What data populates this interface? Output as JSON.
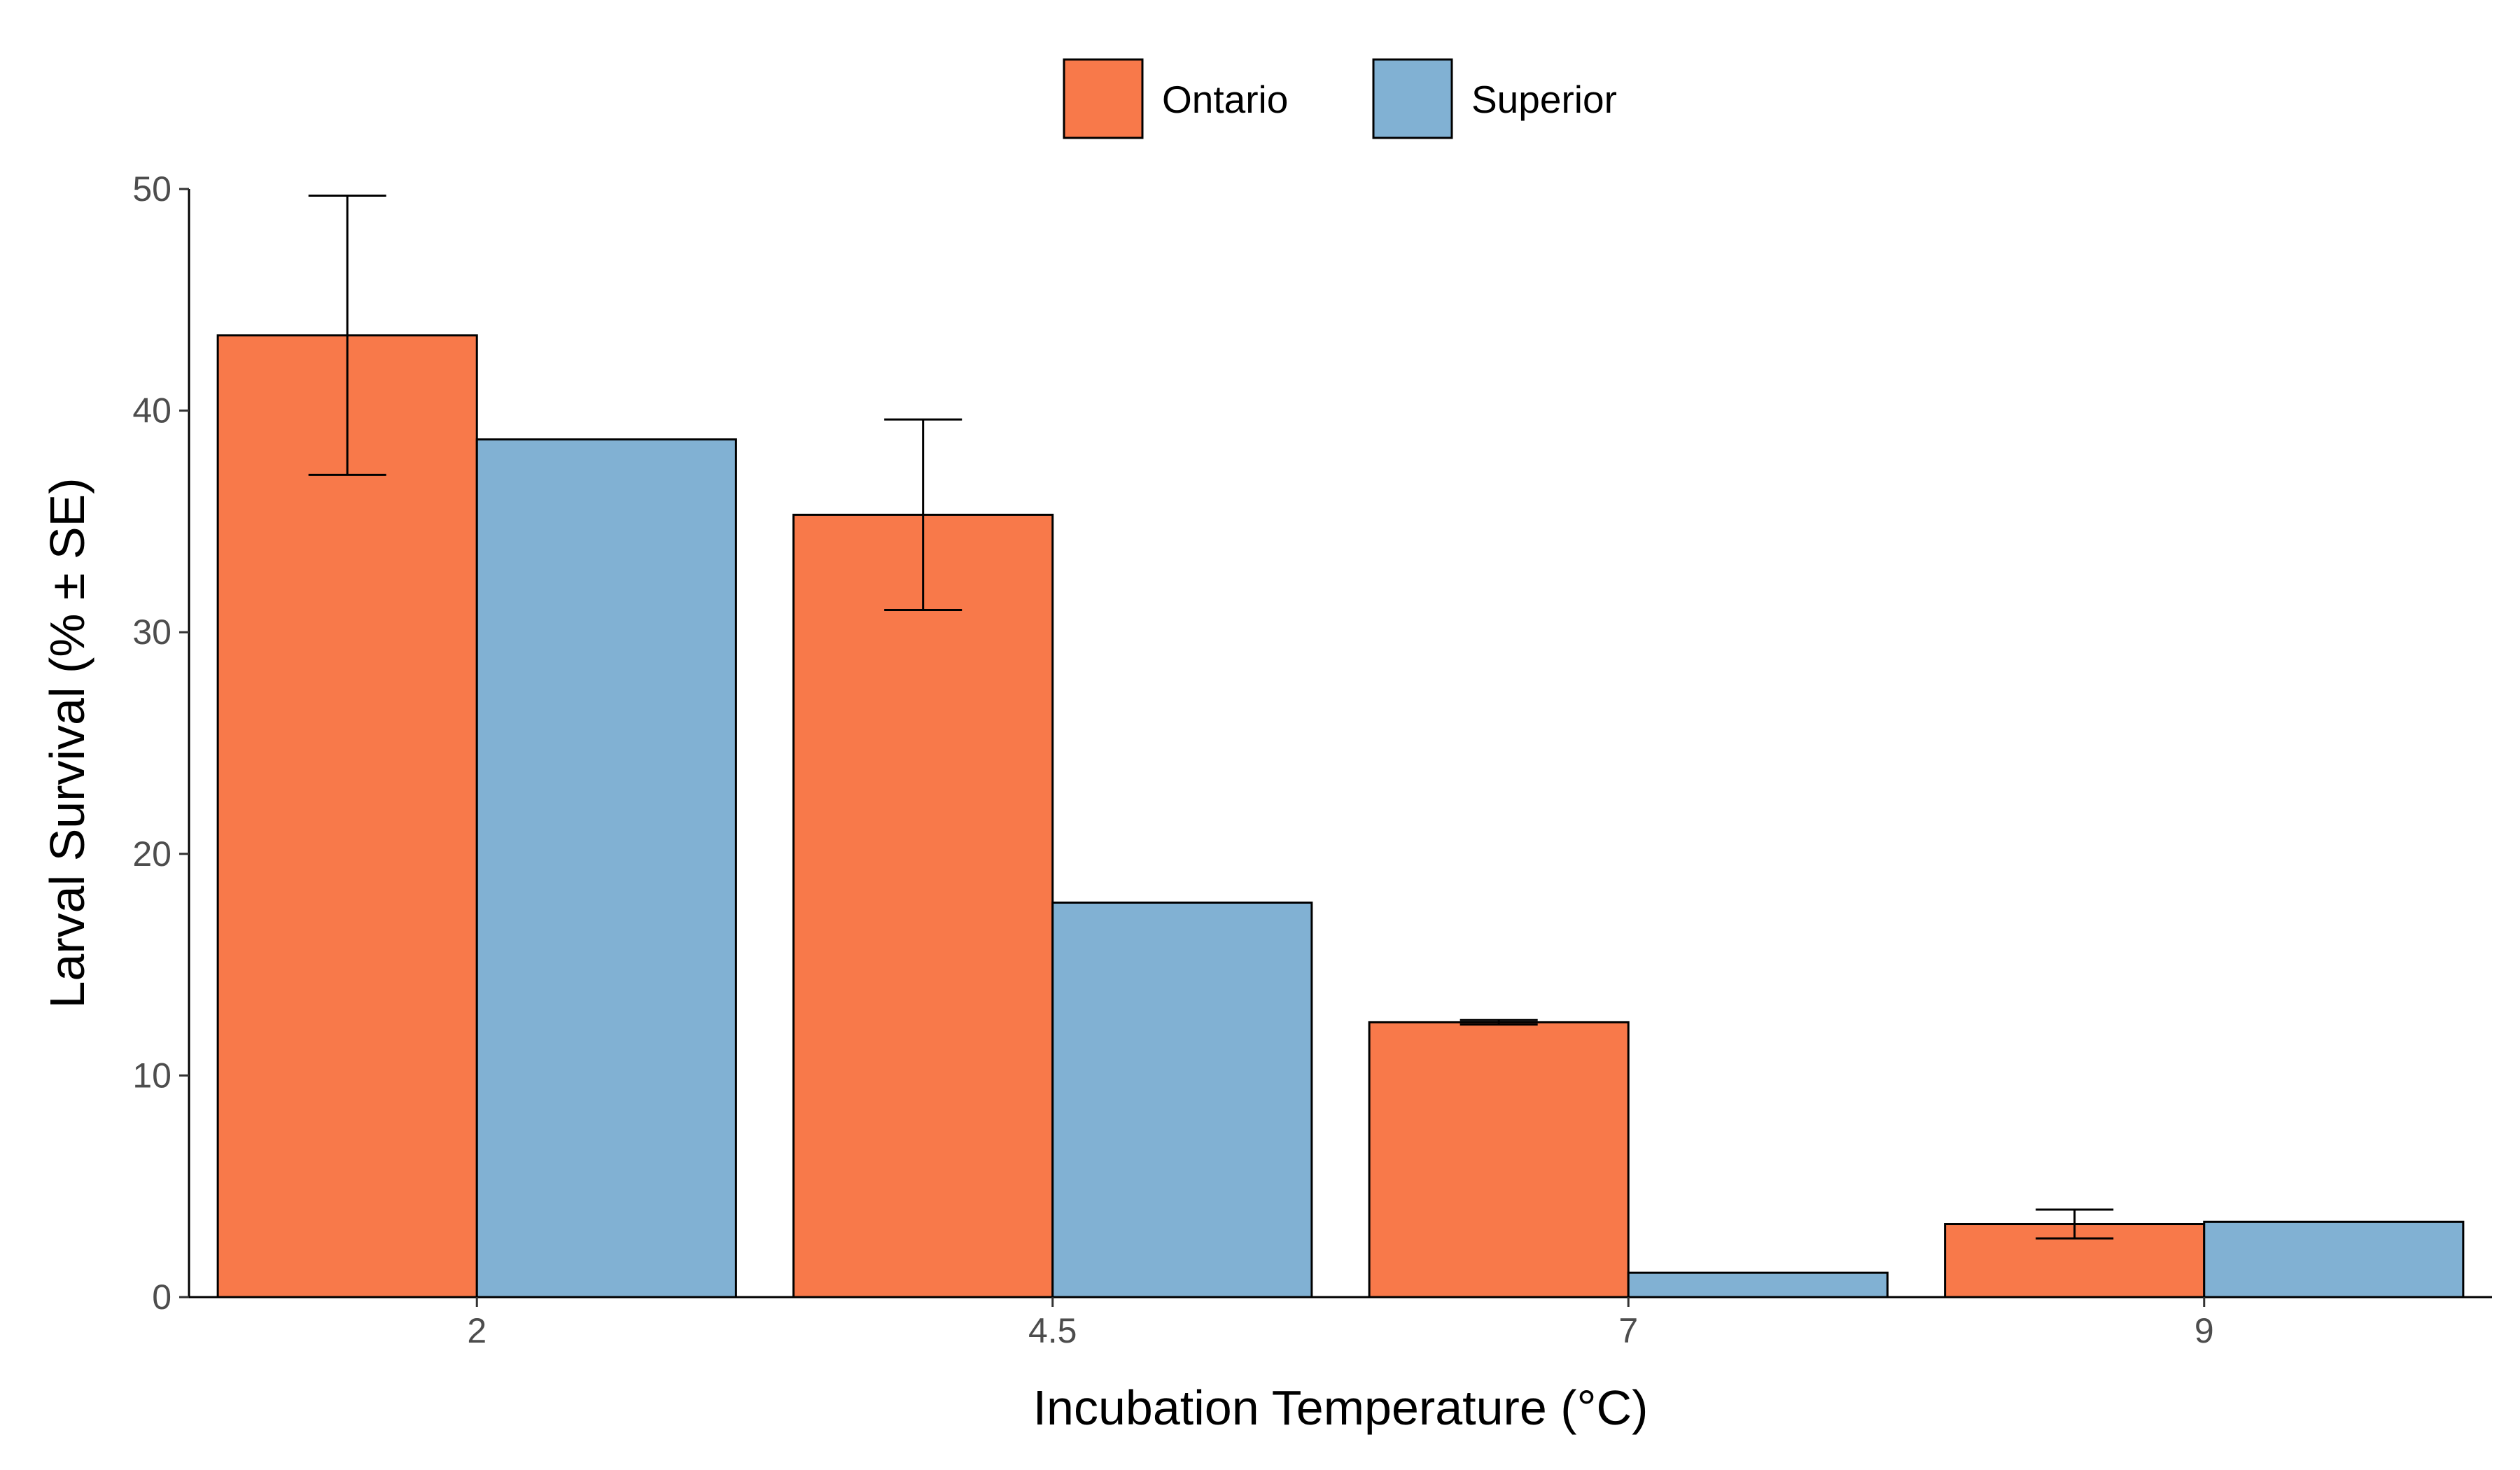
{
  "chart_data": {
    "type": "bar",
    "xlabel": "Incubation Temperature (°C)",
    "ylabel": "Larval Survival (% ± SE)",
    "categories": [
      "2",
      "4.5",
      "7",
      "9"
    ],
    "ylim": [
      0,
      50
    ],
    "yticks": [
      0,
      10,
      20,
      30,
      40,
      50
    ],
    "grid": false,
    "legend_position": "top",
    "series": [
      {
        "name": "Ontario",
        "color": "#F8794A",
        "values": [
          43.4,
          35.3,
          12.4,
          3.3
        ],
        "se": [
          6.3,
          4.3,
          0.1,
          0.65
        ]
      },
      {
        "name": "Superior",
        "color": "#81B1D3",
        "values": [
          38.7,
          17.8,
          1.1,
          3.4
        ],
        "se": [
          null,
          null,
          null,
          null
        ]
      }
    ]
  }
}
